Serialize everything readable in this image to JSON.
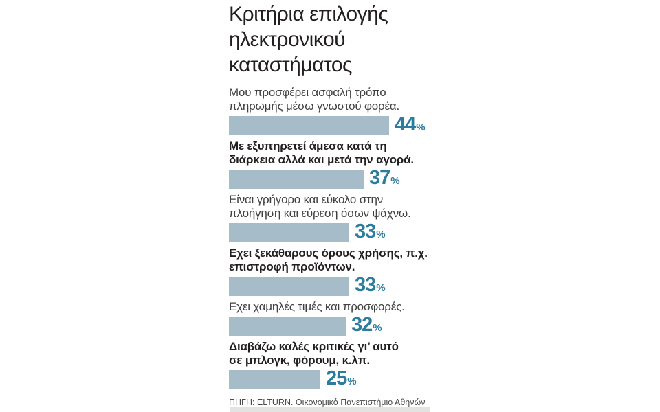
{
  "chart_data": {
    "type": "bar",
    "orientation": "horizontal",
    "title": "Κριτήρια επιλογής\nηλεκτρονικού\nκαταστήματος",
    "source": "ΠΗΓΗ: ELTURN. Οικονομικό Πανεπιστήμιο Αθηνών",
    "unit": "%",
    "xlim": [
      0,
      50
    ],
    "grid": false,
    "legend": false,
    "value_labels_position": "right-of-bar",
    "categories": [
      "Μου προσφέρει ασφαλή τρόπο\nπληρωμής μέσω γνωστού φορέα.",
      "Με εξυπηρετεί άμεσα κατά τη\nδιάρκεια αλλά και μετά την αγορά.",
      "Είναι γρήγορο και εύκολο στην\nπλοήγηση και εύρεση όσων ψάχνω.",
      "Εχει ξεκάθαρους όρους χρήσης, π.χ.\nεπιστροφή προϊόντων.",
      "Εχει χαμηλές τιμές και προσφορές.",
      "Διαβάζω καλές κριτικές γι’ αυτό\nσε μπλογκ, φόρουμ, κ.λπ."
    ],
    "values": [
      44,
      37,
      33,
      33,
      32,
      25
    ],
    "items": [
      {
        "label": "Μου προσφέρει ασφαλή τρόπο\nπληρωμής μέσω γνωστού φορέα.",
        "value": 44,
        "bold": false
      },
      {
        "label": "Με εξυπηρετεί άμεσα κατά τη\nδιάρκεια αλλά και μετά την αγορά.",
        "value": 37,
        "bold": true
      },
      {
        "label": "Είναι γρήγορο και εύκολο στην\nπλοήγηση και εύρεση όσων ψάχνω.",
        "value": 33,
        "bold": false
      },
      {
        "label": "Εχει ξεκάθαρους όρους χρήσης, π.χ.\nεπιστροφή προϊόντων.",
        "value": 33,
        "bold": true
      },
      {
        "label": "Εχει χαμηλές τιμές και προσφορές.",
        "value": 32,
        "bold": false
      },
      {
        "label": "Διαβάζω καλές κριτικές γι’ αυτό\nσε μπλογκ, φόρουμ, κ.λπ.",
        "value": 25,
        "bold": true
      }
    ],
    "colors": {
      "bar": "#a6bdc9",
      "value": "#2c7d9d",
      "title": "#231f20",
      "label_regular": "#414042",
      "label_bold": "#231f20",
      "source": "#4b4b4d",
      "bottom_strip": "#e3e3e1"
    }
  }
}
